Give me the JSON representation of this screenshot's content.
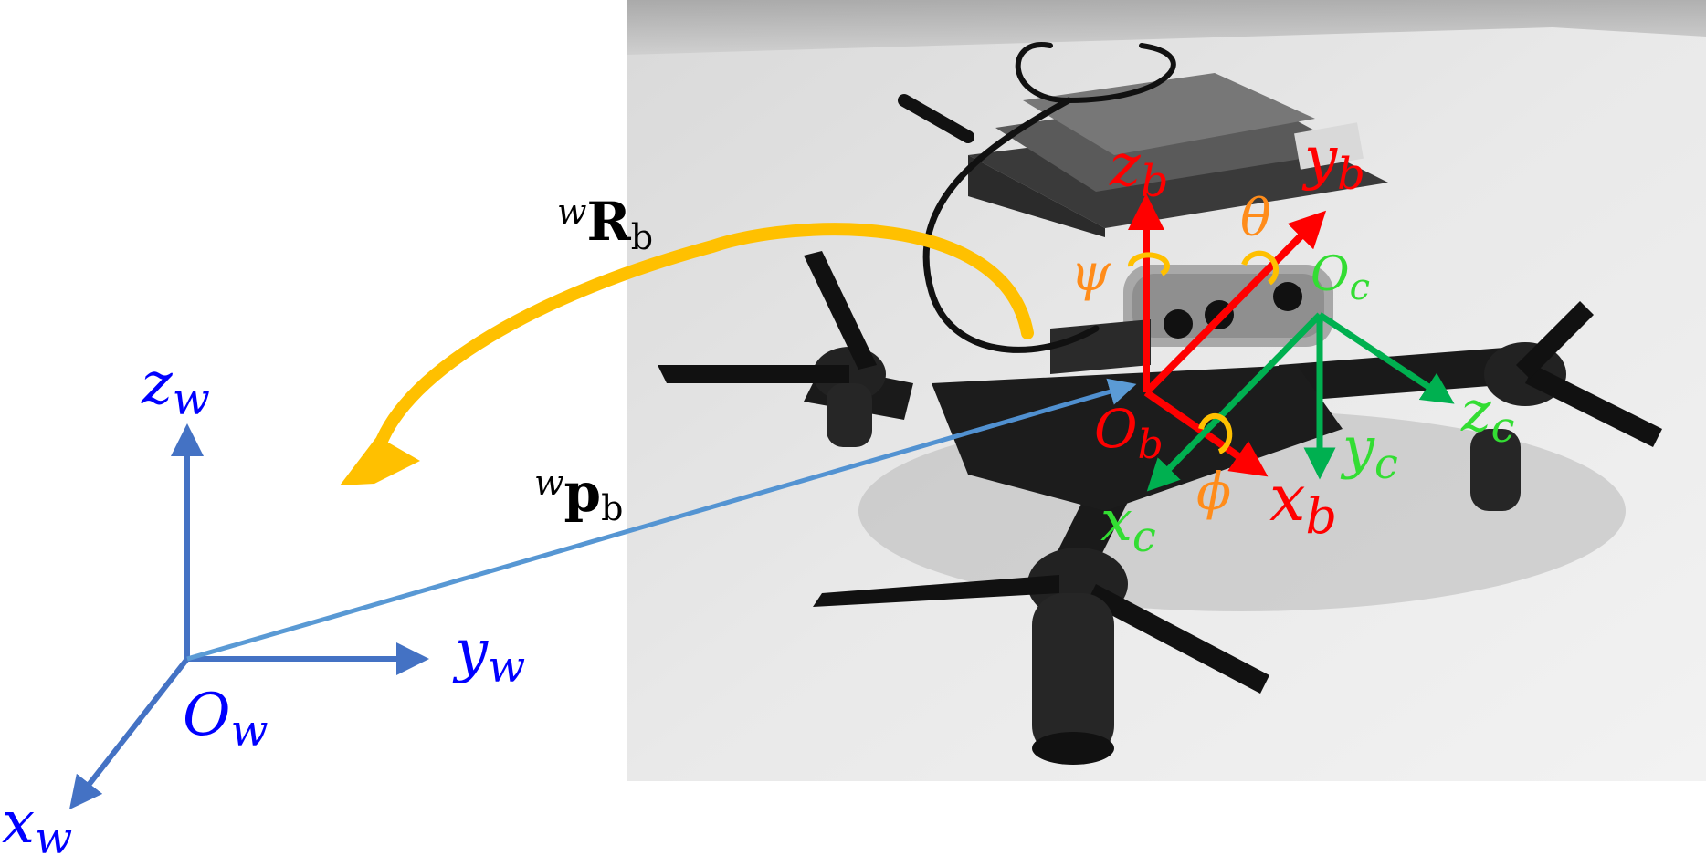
{
  "world_frame": {
    "color": "#4472c4",
    "label_color": "#0000ff",
    "origin": "O",
    "origin_sub": "w",
    "x": "x",
    "x_sub": "w",
    "y": "y",
    "y_sub": "w",
    "z": "z",
    "z_sub": "w"
  },
  "transforms": {
    "rotation": {
      "sup": "w",
      "main": "R",
      "sub": "b",
      "color": "#ffc000"
    },
    "position": {
      "sup": "w",
      "main": "p",
      "sub": "b"
    }
  },
  "body_frame": {
    "color": "#ff0000",
    "origin": "O",
    "origin_sub": "b",
    "x": "x",
    "x_sub": "b",
    "y": "y",
    "y_sub": "b",
    "z": "z",
    "z_sub": "b"
  },
  "camera_frame": {
    "color": "#00b050",
    "label_color": "#33dd33",
    "origin": "O",
    "origin_sub": "c",
    "x": "x",
    "x_sub": "c",
    "y": "y",
    "y_sub": "c",
    "z": "z",
    "z_sub": "c"
  },
  "euler_angles": {
    "color": "#ff8c1a",
    "roll": "ϕ",
    "pitch": "θ",
    "yaw": "ψ"
  },
  "photo": {
    "description_icon": "drone-photo"
  }
}
